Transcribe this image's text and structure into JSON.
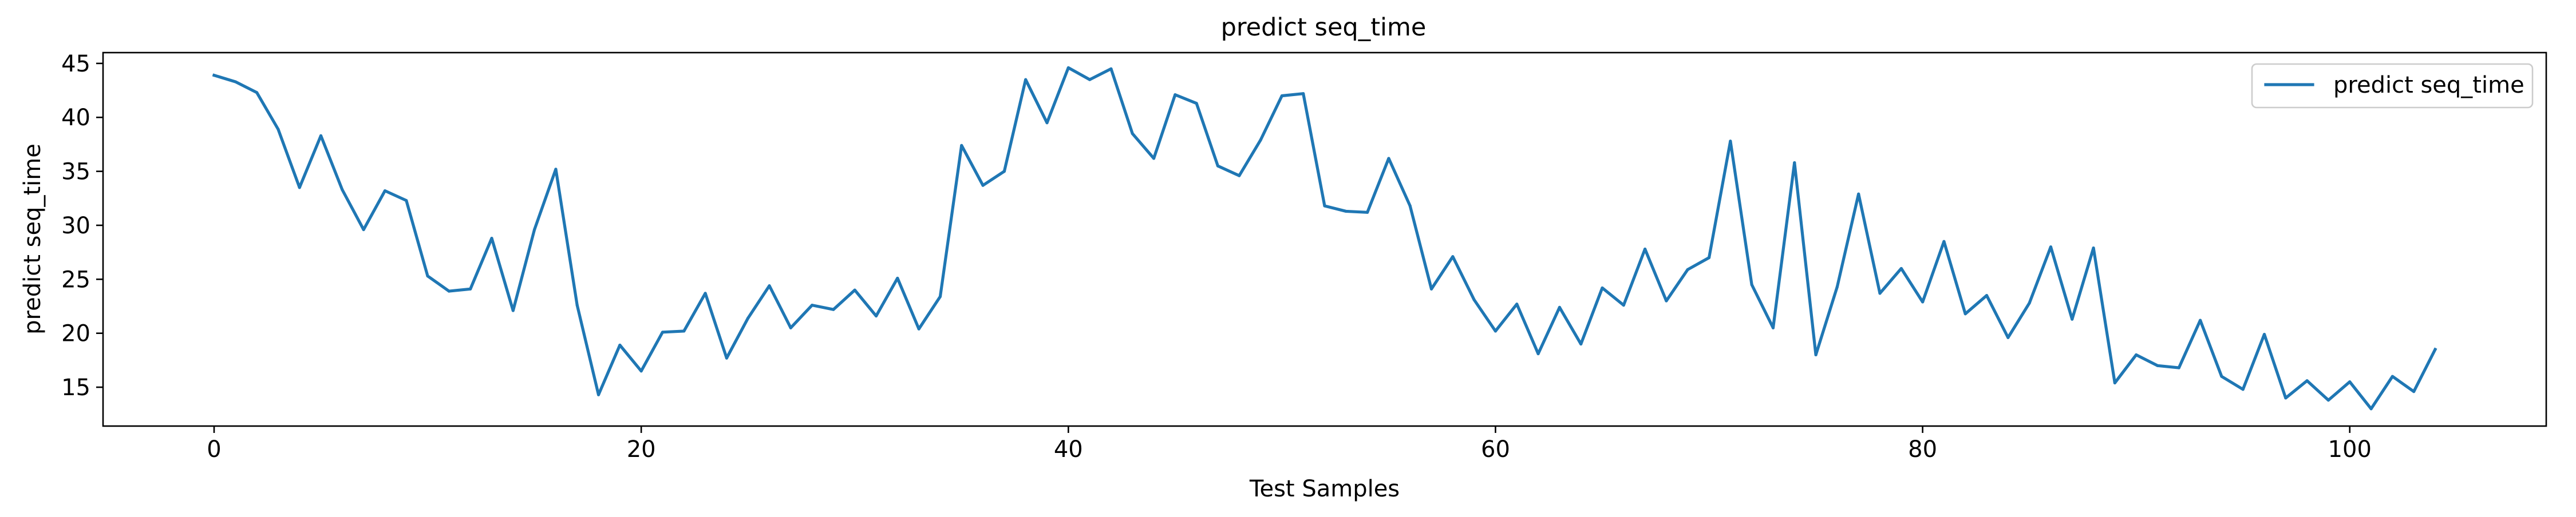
{
  "chart_data": {
    "type": "line",
    "title": "predict seq_time",
    "xlabel": "Test Samples",
    "ylabel": "predict seq_time",
    "xlim": [
      -5.2,
      109.2
    ],
    "ylim": [
      11.4,
      46.0
    ],
    "xticks": [
      0,
      20,
      40,
      60,
      80,
      100
    ],
    "yticks": [
      15,
      20,
      25,
      30,
      35,
      40,
      45
    ],
    "grid": false,
    "legend_position": "top-right",
    "series": [
      {
        "name": "predict seq_time",
        "color": "#1f77b4",
        "x": [
          0,
          1,
          2,
          3,
          4,
          5,
          6,
          7,
          8,
          9,
          10,
          11,
          12,
          13,
          14,
          15,
          16,
          17,
          18,
          19,
          20,
          21,
          22,
          23,
          24,
          25,
          26,
          27,
          28,
          29,
          30,
          31,
          32,
          33,
          34,
          35,
          36,
          37,
          38,
          39,
          40,
          41,
          42,
          43,
          44,
          45,
          46,
          47,
          48,
          49,
          50,
          51,
          52,
          53,
          54,
          55,
          56,
          57,
          58,
          59,
          60,
          61,
          62,
          63,
          64,
          65,
          66,
          67,
          68,
          69,
          70,
          71,
          72,
          73,
          74,
          75,
          76,
          77,
          78,
          79,
          80,
          81,
          82,
          83,
          84,
          85,
          86,
          87,
          88,
          89,
          90,
          91,
          92,
          93,
          94,
          95,
          96,
          97,
          98,
          99,
          100,
          101,
          102,
          103,
          104
        ],
        "values": [
          43.9,
          43.3,
          42.3,
          38.9,
          33.5,
          38.3,
          33.3,
          29.6,
          33.2,
          32.3,
          25.3,
          23.9,
          24.1,
          28.8,
          22.1,
          29.6,
          35.2,
          22.6,
          14.3,
          18.9,
          16.5,
          20.1,
          20.2,
          23.7,
          17.7,
          21.4,
          24.4,
          20.5,
          22.6,
          22.2,
          24.0,
          21.6,
          25.1,
          20.4,
          23.4,
          37.4,
          33.7,
          35.0,
          43.5,
          39.5,
          44.6,
          43.5,
          44.5,
          38.5,
          36.2,
          42.1,
          41.3,
          35.5,
          34.6,
          37.9,
          42.0,
          42.2,
          31.8,
          31.3,
          31.2,
          36.2,
          31.8,
          24.1,
          27.1,
          23.1,
          20.2,
          22.7,
          18.1,
          22.4,
          19.0,
          24.2,
          22.6,
          27.8,
          23.0,
          25.9,
          27.0,
          37.8,
          24.5,
          20.5,
          35.8,
          18.0,
          24.3,
          32.9,
          23.7,
          26.0,
          22.9,
          28.5,
          21.8,
          23.5,
          19.6,
          22.8,
          28.0,
          21.3,
          27.9,
          15.4,
          18.0,
          17.0,
          16.8,
          21.2,
          16.0,
          14.8,
          19.9,
          14.0,
          15.6,
          13.8,
          15.5,
          13.0,
          16.0,
          14.6,
          18.5
        ]
      }
    ]
  }
}
